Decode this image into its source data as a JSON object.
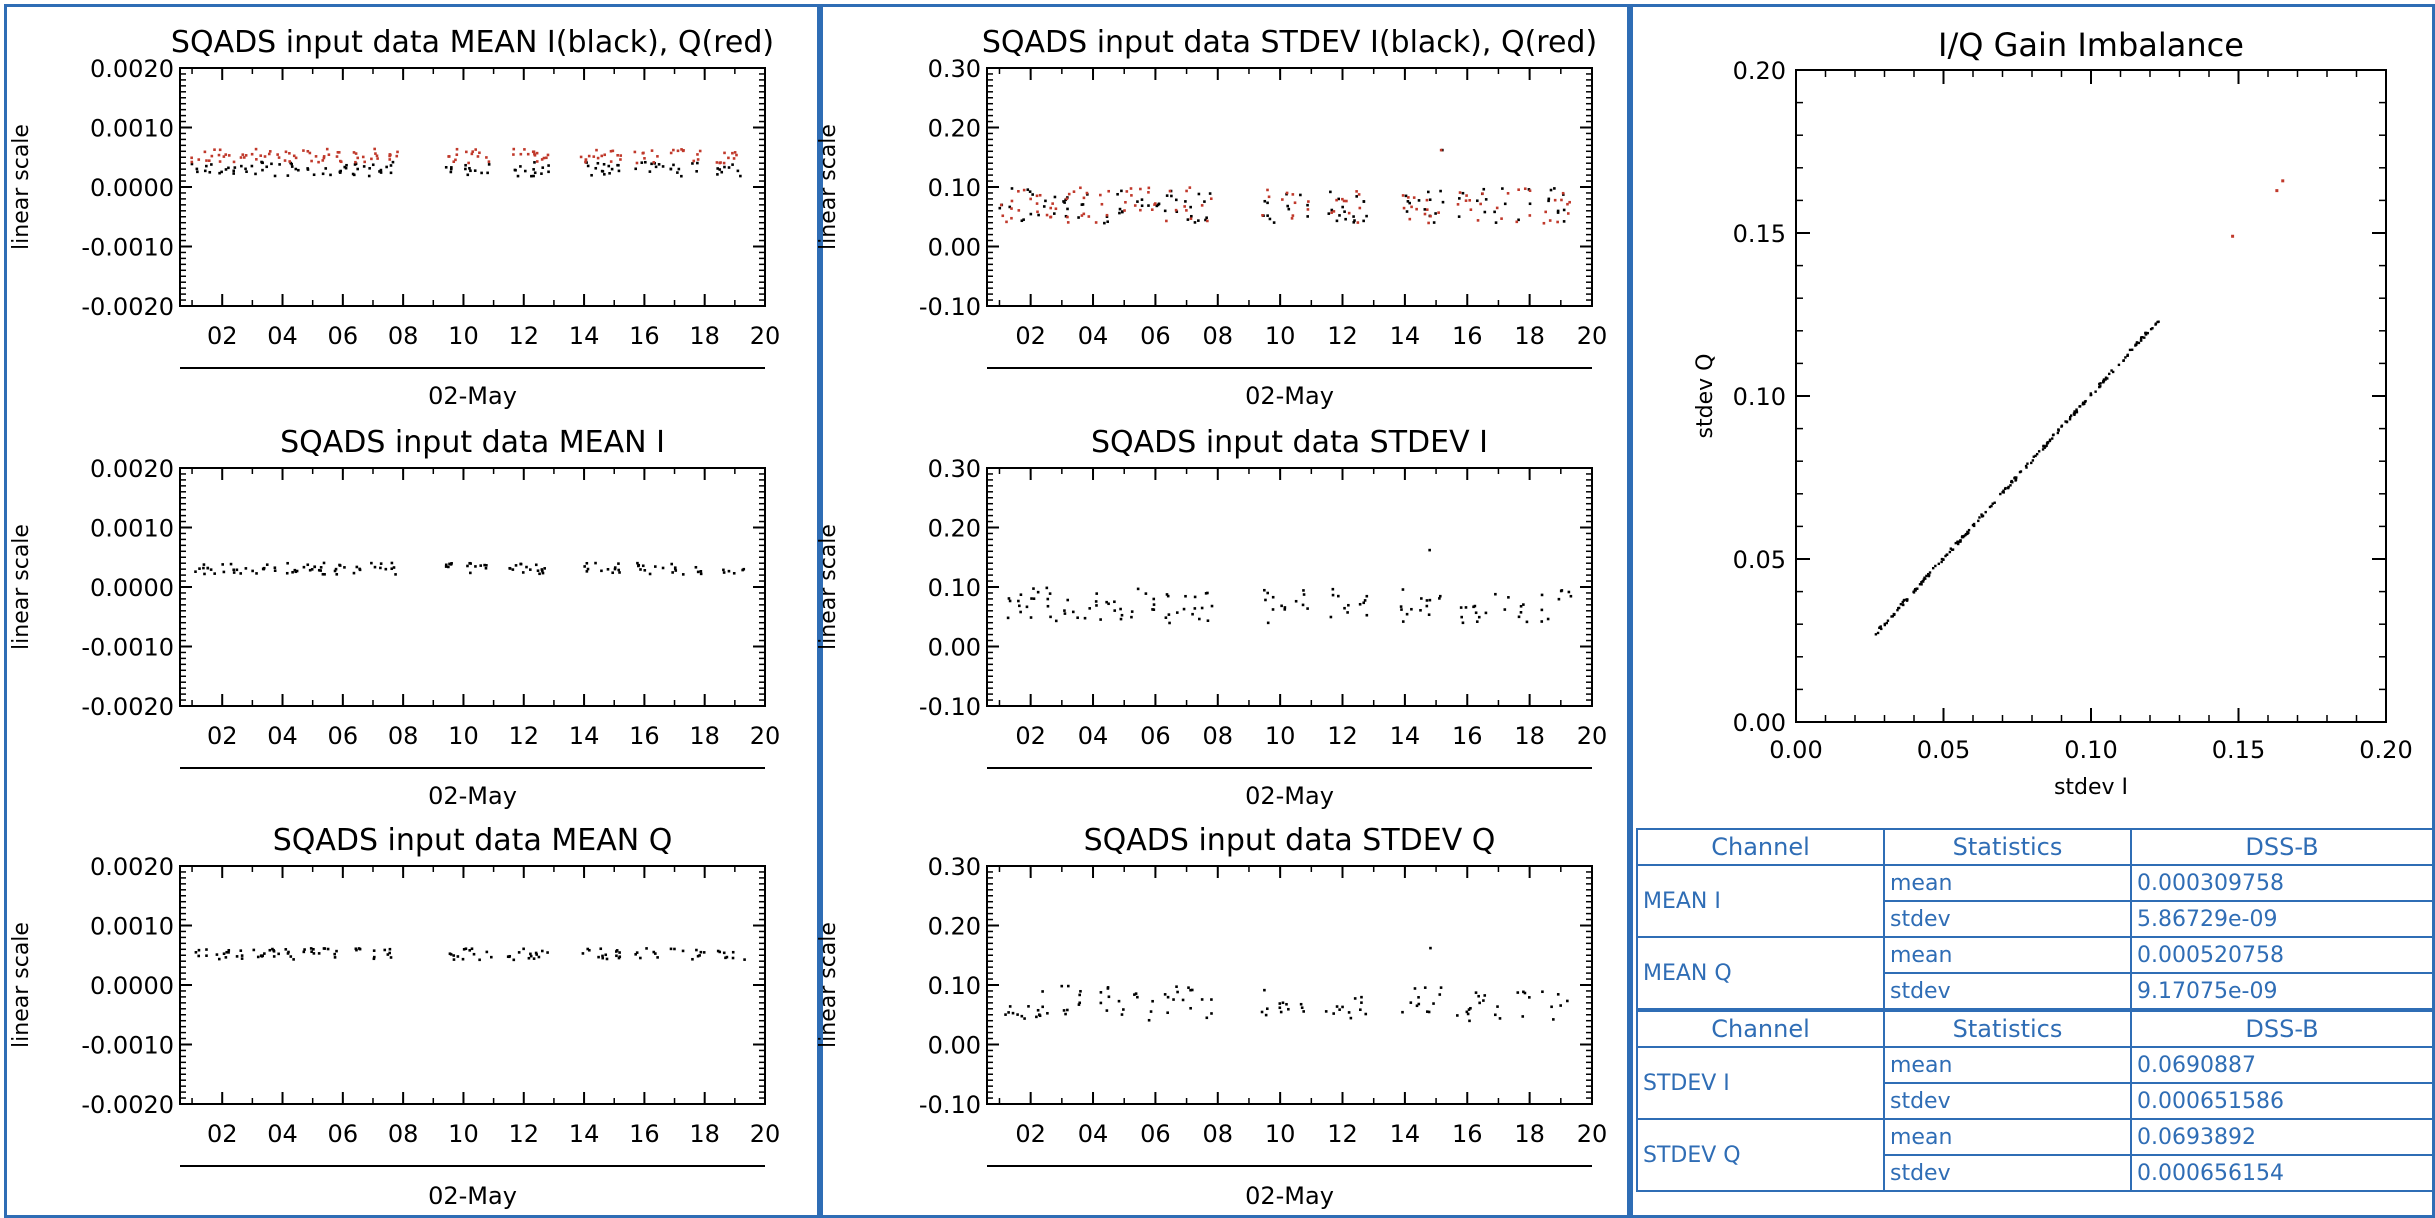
{
  "colors": {
    "border": "#2f6db5",
    "series_i": "#000000",
    "series_q": "#c0392b",
    "table_text": "#2f6db5"
  },
  "chart_data": [
    {
      "id": "mean_iq",
      "type": "scatter",
      "title": "SQADS input data MEAN I(black), Q(red)",
      "xlabel": "02-May",
      "ylabel": "linear scale",
      "xlim": [
        0.6,
        20
      ],
      "ylim": [
        -0.002,
        0.002
      ],
      "xticks": [
        "02",
        "04",
        "06",
        "08",
        "10",
        "12",
        "14",
        "16",
        "18",
        "20"
      ],
      "yticks": [
        "0.0020",
        "0.0010",
        "0.0000",
        "-0.0010",
        "-0.0020"
      ],
      "series": [
        {
          "color": "#000000",
          "center": 0.0003,
          "spread": 0.00012,
          "seed": 11
        },
        {
          "color": "#c0392b",
          "center": 0.00052,
          "spread": 0.00012,
          "seed": 23
        }
      ]
    },
    {
      "id": "stdev_iq",
      "type": "scatter",
      "title": "SQADS input data STDEV I(black), Q(red)",
      "xlabel": "02-May",
      "ylabel": "linear scale",
      "xlim": [
        0.6,
        20
      ],
      "ylim": [
        -0.1,
        0.3
      ],
      "xticks": [
        "02",
        "04",
        "06",
        "08",
        "10",
        "12",
        "14",
        "16",
        "18",
        "20"
      ],
      "yticks": [
        "0.30",
        "0.20",
        "0.10",
        "0.00",
        "-0.10"
      ],
      "series": [
        {
          "color": "#000000",
          "center": 0.069,
          "spread": 0.03,
          "seed": 31
        },
        {
          "color": "#c0392b",
          "center": 0.069,
          "spread": 0.03,
          "seed": 47
        }
      ]
    },
    {
      "id": "mean_i",
      "type": "scatter",
      "title": "SQADS input data MEAN I",
      "xlabel": "02-May",
      "ylabel": "linear scale",
      "xlim": [
        0.6,
        20
      ],
      "ylim": [
        -0.002,
        0.002
      ],
      "xticks": [
        "02",
        "04",
        "06",
        "08",
        "10",
        "12",
        "14",
        "16",
        "18",
        "20"
      ],
      "yticks": [
        "0.0020",
        "0.0010",
        "0.0000",
        "-0.0010",
        "-0.0020"
      ],
      "series": [
        {
          "color": "#000000",
          "center": 0.00031,
          "spread": 0.0001,
          "seed": 53
        }
      ]
    },
    {
      "id": "stdev_i",
      "type": "scatter",
      "title": "SQADS input data STDEV I",
      "xlabel": "02-May",
      "ylabel": "linear scale",
      "xlim": [
        0.6,
        20
      ],
      "ylim": [
        -0.1,
        0.3
      ],
      "xticks": [
        "02",
        "04",
        "06",
        "08",
        "10",
        "12",
        "14",
        "16",
        "18",
        "20"
      ],
      "yticks": [
        "0.30",
        "0.20",
        "0.10",
        "0.00",
        "-0.10"
      ],
      "series": [
        {
          "color": "#000000",
          "center": 0.069,
          "spread": 0.03,
          "seed": 67
        }
      ]
    },
    {
      "id": "mean_q",
      "type": "scatter",
      "title": "SQADS input data MEAN Q",
      "xlabel": "02-May",
      "ylabel": "linear scale",
      "xlim": [
        0.6,
        20
      ],
      "ylim": [
        -0.002,
        0.002
      ],
      "xticks": [
        "02",
        "04",
        "06",
        "08",
        "10",
        "12",
        "14",
        "16",
        "18",
        "20"
      ],
      "yticks": [
        "0.0020",
        "0.0010",
        "0.0000",
        "-0.0010",
        "-0.0020"
      ],
      "series": [
        {
          "color": "#000000",
          "center": 0.00052,
          "spread": 0.0001,
          "seed": 71
        }
      ]
    },
    {
      "id": "stdev_q",
      "type": "scatter",
      "title": "SQADS input data STDEV Q",
      "xlabel": "02-May",
      "ylabel": "linear scale",
      "xlim": [
        0.6,
        20
      ],
      "ylim": [
        -0.1,
        0.3
      ],
      "xticks": [
        "02",
        "04",
        "06",
        "08",
        "10",
        "12",
        "14",
        "16",
        "18",
        "20"
      ],
      "yticks": [
        "0.30",
        "0.20",
        "0.10",
        "0.00",
        "-0.10"
      ],
      "series": [
        {
          "color": "#000000",
          "center": 0.069,
          "spread": 0.03,
          "seed": 89
        }
      ]
    },
    {
      "id": "gain_imbalance",
      "type": "scatter",
      "title": "I/Q Gain Imbalance",
      "xlabel": "stdev I",
      "ylabel": "stdev Q",
      "xlim": [
        0,
        0.2
      ],
      "ylim": [
        0,
        0.2
      ],
      "xticks": [
        "0.00",
        "0.05",
        "0.10",
        "0.15",
        "0.20"
      ],
      "yticks": [
        "0.20",
        "0.15",
        "0.10",
        "0.05",
        "0.00"
      ],
      "x_range": [
        0.027,
        0.124
      ],
      "outliers": [
        [
          0.148,
          0.149
        ],
        [
          0.163,
          0.163
        ],
        [
          0.165,
          0.166
        ]
      ]
    }
  ],
  "stats_table": {
    "header": [
      "Channel",
      "Statistics",
      "DSS-B"
    ],
    "groups": [
      {
        "channel": "MEAN I",
        "rows": [
          [
            "mean",
            "0.000309758"
          ],
          [
            "stdev",
            "5.86729e-09"
          ]
        ]
      },
      {
        "channel": "MEAN Q",
        "rows": [
          [
            "mean",
            "0.000520758"
          ],
          [
            "stdev",
            "9.17075e-09"
          ]
        ]
      },
      {
        "channel": "STDEV I",
        "rows": [
          [
            "mean",
            "0.0690887"
          ],
          [
            "stdev",
            "0.000651586"
          ]
        ]
      },
      {
        "channel": "STDEV Q",
        "rows": [
          [
            "mean",
            "0.0693892"
          ],
          [
            "stdev",
            "0.000656154"
          ]
        ]
      }
    ]
  }
}
